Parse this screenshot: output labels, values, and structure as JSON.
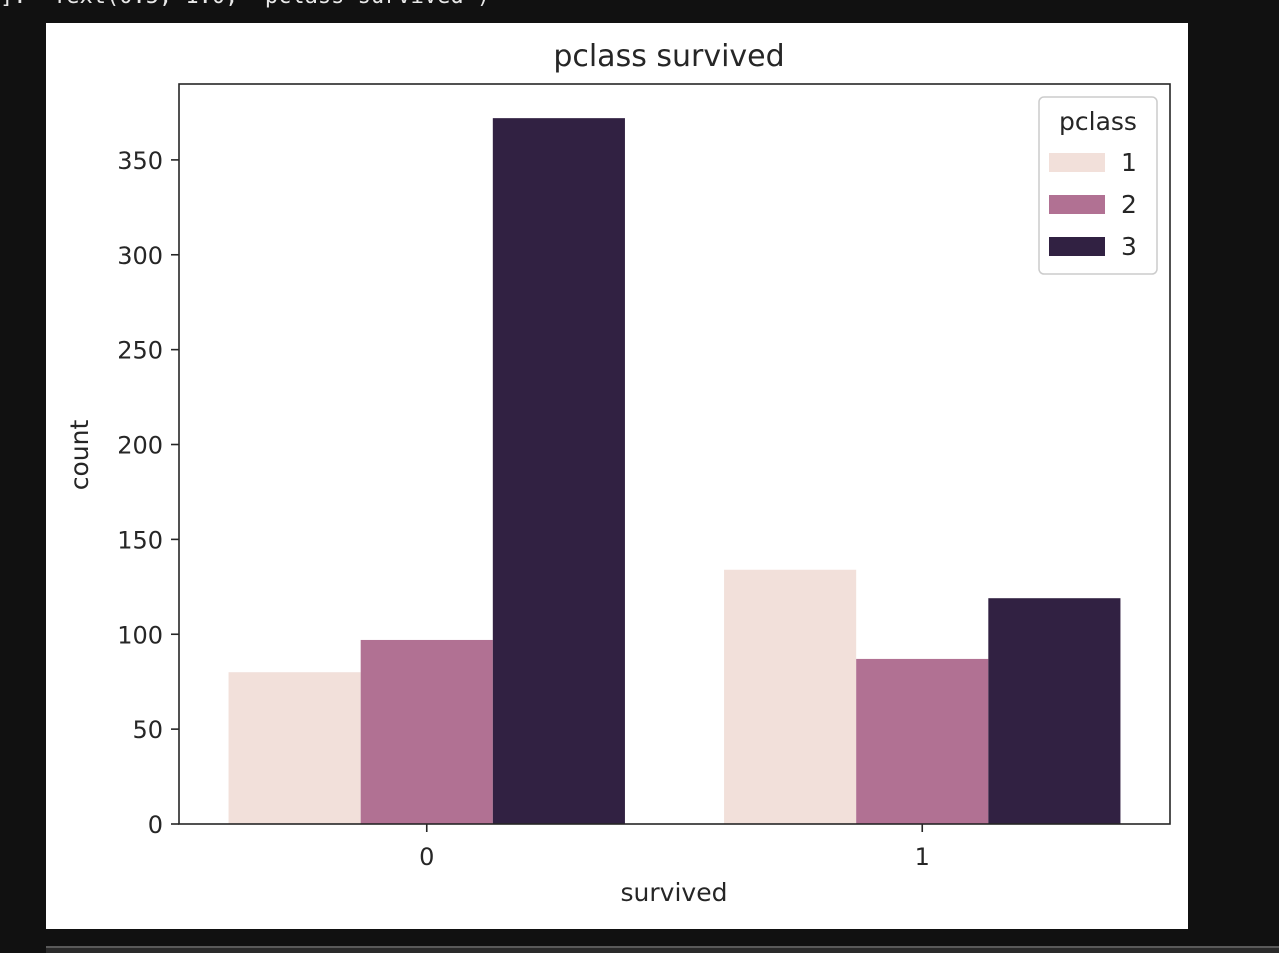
{
  "cell_output": {
    "code_text": "]:  Text(0.5, 1.0, 'pclass survived')"
  },
  "chart_data": {
    "type": "bar",
    "title": "pclass survived",
    "xlabel": "survived",
    "ylabel": "count",
    "categories": [
      "0",
      "1"
    ],
    "series": [
      {
        "name": "1",
        "values": [
          80,
          134
        ],
        "color": "#f2e0da"
      },
      {
        "name": "2",
        "values": [
          97,
          87
        ],
        "color": "#b17193"
      },
      {
        "name": "3",
        "values": [
          372,
          119
        ],
        "color": "#312142"
      }
    ],
    "ylim": [
      0,
      390
    ],
    "yticks": [
      0,
      50,
      100,
      150,
      200,
      250,
      300,
      350
    ],
    "legend": {
      "title": "pclass",
      "placement": "top-right"
    },
    "grid": false
  }
}
